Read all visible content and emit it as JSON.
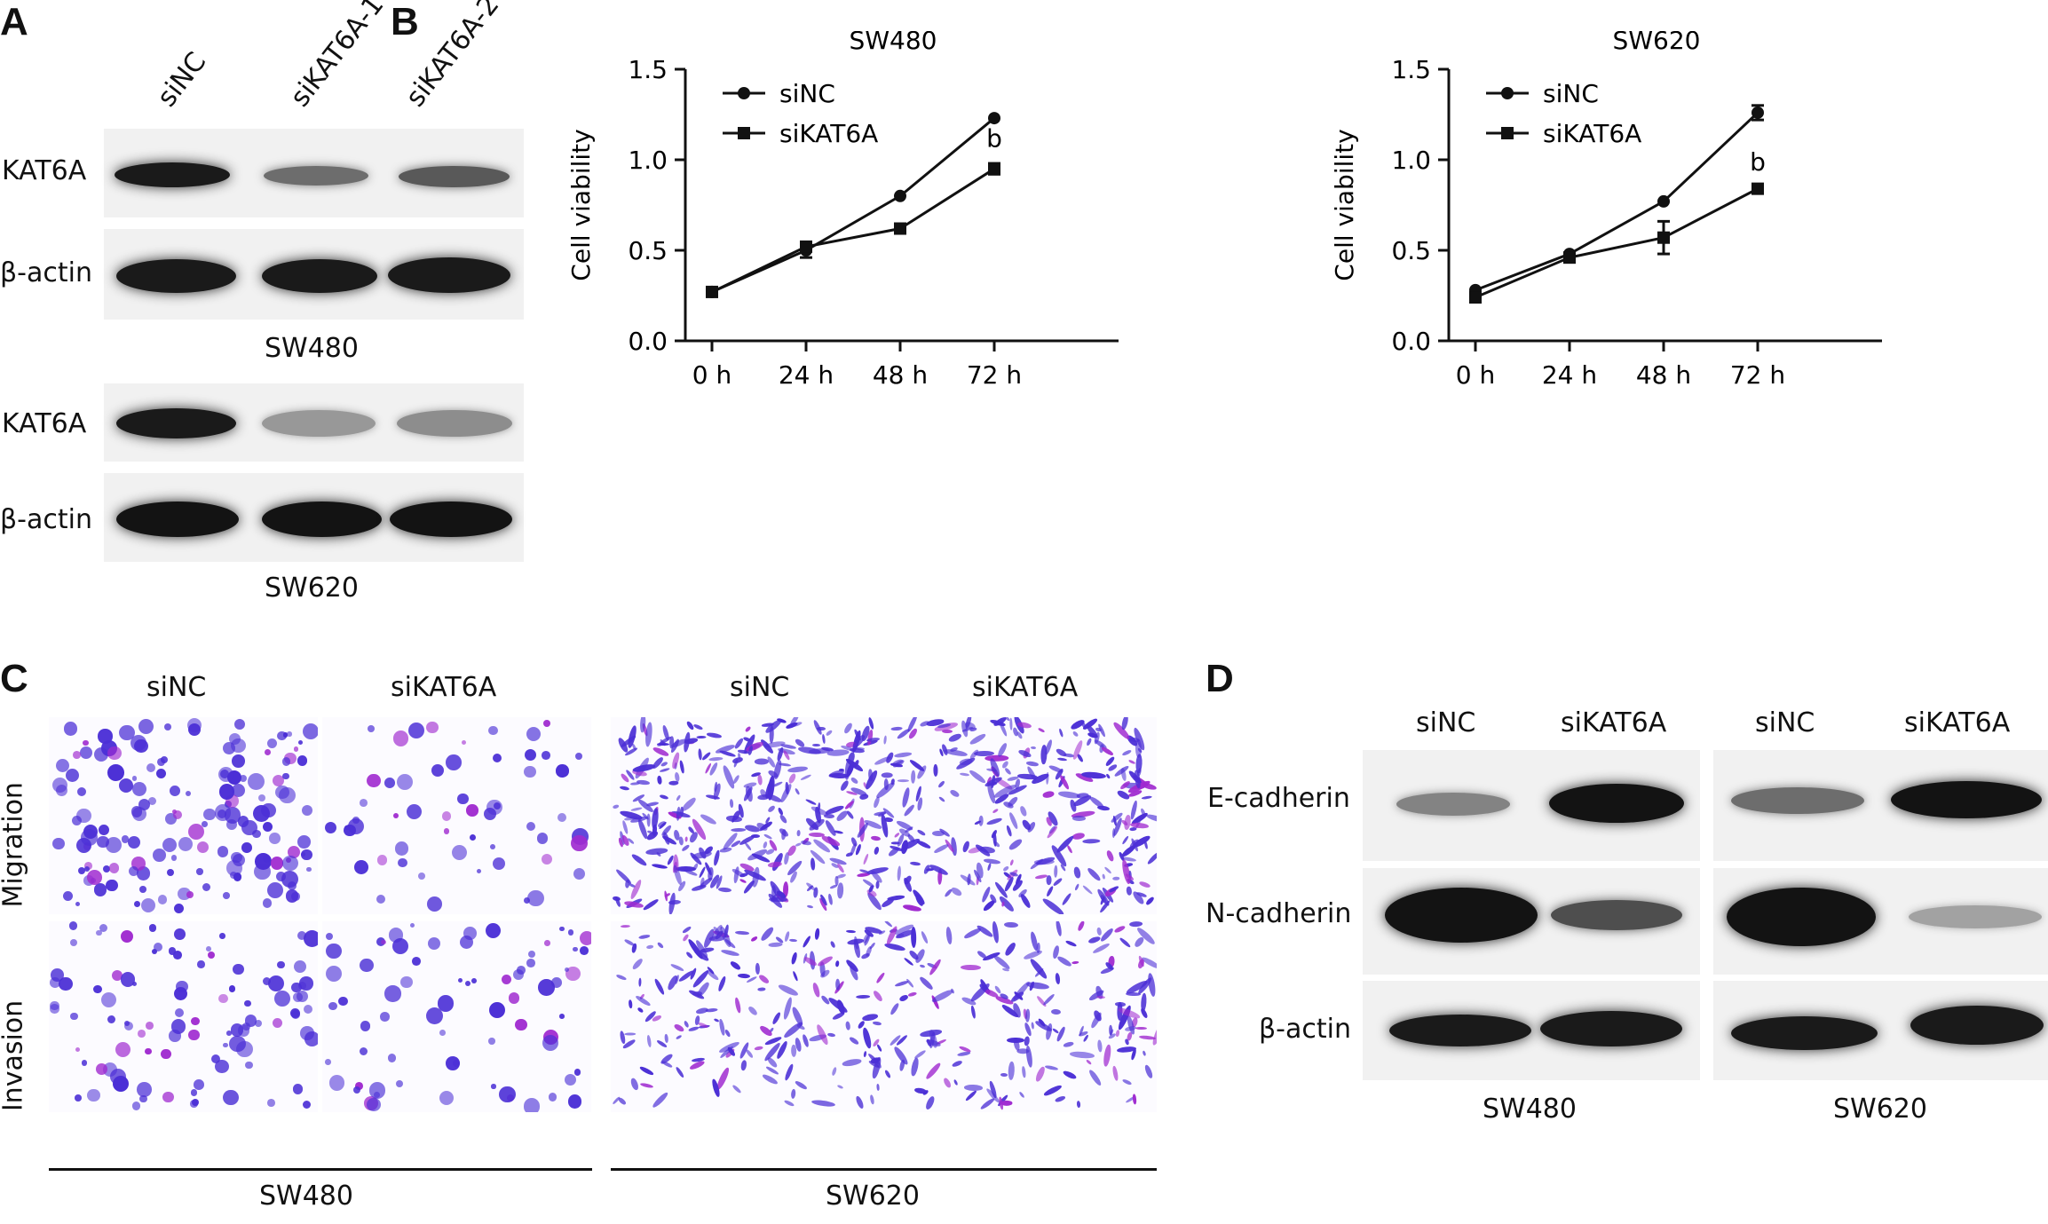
{
  "panels": {
    "a": "A",
    "b": "B",
    "c": "C",
    "d": "D"
  },
  "panel_a": {
    "lanes": [
      "siNC",
      "siKAT6A-1",
      "siKAT6A-2"
    ],
    "rows": [
      "KAT6A",
      "β-actin",
      "KAT6A",
      "β-actin"
    ],
    "cells": [
      "SW480",
      "SW620"
    ],
    "band_intensity": {
      "sw480_kat6a": [
        0.95,
        0.55,
        0.65
      ],
      "sw480_actin": [
        0.95,
        0.95,
        0.95
      ],
      "sw620_kat6a": [
        0.95,
        0.35,
        0.4
      ],
      "sw620_actin": [
        0.98,
        0.98,
        0.98
      ]
    }
  },
  "chart_data": [
    {
      "type": "line",
      "title": "SW480",
      "ylabel": "Cell viability",
      "categories": [
        "0 h",
        "24 h",
        "48 h",
        "72 h"
      ],
      "ylim": [
        0,
        1.5
      ],
      "yticks": [
        "0.0",
        "0.5",
        "1.0",
        "1.5"
      ],
      "legend_position": "top-left",
      "series": [
        {
          "name": "siNC",
          "marker": "circle",
          "values": [
            0.27,
            0.5,
            0.8,
            1.23
          ],
          "errors": [
            0.01,
            0.04,
            0.01,
            0.01
          ]
        },
        {
          "name": "siKAT6A",
          "marker": "square",
          "values": [
            0.27,
            0.52,
            0.62,
            0.95
          ],
          "errors": [
            0.01,
            0.02,
            0.02,
            0.03
          ]
        }
      ],
      "annotations": [
        {
          "text": "b",
          "category": "72 h",
          "y": 1.07
        }
      ]
    },
    {
      "type": "line",
      "title": "SW620",
      "ylabel": "Cell viability",
      "categories": [
        "0 h",
        "24 h",
        "48 h",
        "72 h"
      ],
      "ylim": [
        0,
        1.5
      ],
      "yticks": [
        "0.0",
        "0.5",
        "1.0",
        "1.5"
      ],
      "legend_position": "top-left",
      "series": [
        {
          "name": "siNC",
          "marker": "circle",
          "values": [
            0.28,
            0.48,
            0.77,
            1.26
          ],
          "errors": [
            0.01,
            0.01,
            0.01,
            0.04
          ]
        },
        {
          "name": "siKAT6A",
          "marker": "square",
          "values": [
            0.24,
            0.46,
            0.57,
            0.84
          ],
          "errors": [
            0.01,
            0.01,
            0.09,
            0.01
          ]
        }
      ],
      "annotations": [
        {
          "text": "b",
          "category": "72 h",
          "y": 0.94
        }
      ]
    }
  ],
  "panel_c": {
    "columns": [
      "siNC",
      "siKAT6A",
      "siNC",
      "siKAT6A"
    ],
    "rows": [
      "Migration",
      "Invasion"
    ],
    "groups": [
      "SW480",
      "SW620"
    ],
    "stain_color": "#4b2fd6",
    "accent_color": "#a02bd0"
  },
  "panel_d": {
    "lanes": [
      "siNC",
      "siKAT6A",
      "siNC",
      "siKAT6A"
    ],
    "rows": [
      "E-cadherin",
      "N-cadherin",
      "β-actin"
    ],
    "cells": [
      "SW480",
      "SW620"
    ],
    "band_intensity": {
      "ecad": [
        0.45,
        0.98,
        0.55,
        0.98
      ],
      "ncad": [
        0.98,
        0.7,
        0.98,
        0.3
      ],
      "actin": [
        0.95,
        0.95,
        0.95,
        0.95
      ]
    }
  }
}
